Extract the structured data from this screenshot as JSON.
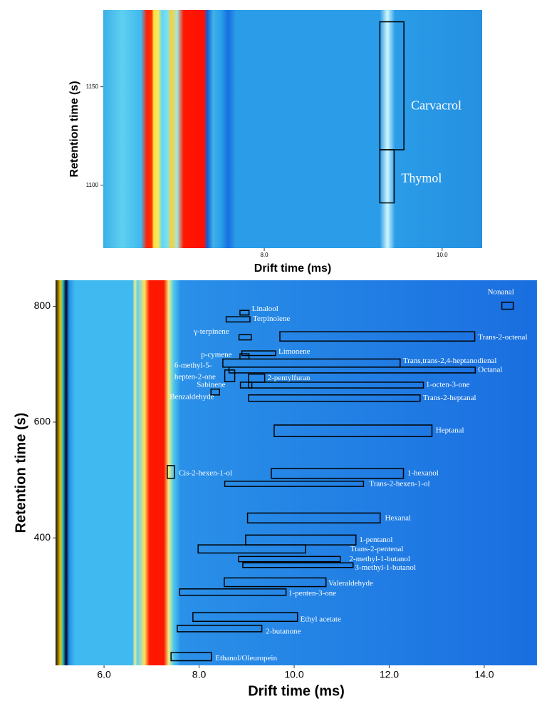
{
  "chart_data": [
    {
      "type": "heatmap",
      "xlabel": "Drift time (ms)",
      "ylabel": "Retention time (s)",
      "xlim": [
        6.19,
        10.45
      ],
      "ylim": [
        1068,
        1189
      ],
      "xticks": [
        {
          "value": 8,
          "label": "8.0"
        },
        {
          "value": 10,
          "label": "10.0"
        }
      ],
      "yticks": [
        1100,
        1150
      ],
      "annotations": [
        {
          "label": "Carvacrol",
          "x": [
            9.3,
            9.57
          ],
          "y": [
            1118,
            1183
          ],
          "at": [
            9.65,
            1140
          ]
        },
        {
          "label": "Thymol",
          "x": [
            9.3,
            9.46
          ],
          "y": [
            1091,
            1118
          ],
          "at": [
            9.54,
            1103
          ]
        }
      ]
    },
    {
      "type": "heatmap",
      "xlabel": "Drift time (ms)",
      "ylabel": "Retention time (s)",
      "xlim": [
        4.98,
        15.11
      ],
      "ylim": [
        180,
        845
      ],
      "xticks": [
        {
          "value": 6,
          "label": "6.0"
        },
        {
          "value": 8,
          "label": "8.0"
        },
        {
          "value": 10,
          "label": "10.0"
        },
        {
          "value": 12,
          "label": "12.0"
        },
        {
          "value": 14,
          "label": "14.0"
        }
      ],
      "yticks": [
        400,
        600,
        800
      ],
      "annotations": [
        {
          "label": "Nonanal",
          "x": [
            14.37,
            14.61
          ],
          "y": [
            795,
            807
          ],
          "at": [
            14.07,
            824
          ]
        },
        {
          "label": "Linalool",
          "x": [
            8.86,
            9.05
          ],
          "y": [
            785,
            793
          ],
          "at": [
            9.11,
            795
          ]
        },
        {
          "label": "Terpinolene",
          "x": [
            8.57,
            9.07
          ],
          "y": [
            773,
            782
          ],
          "at": [
            9.13,
            778
          ]
        },
        {
          "label": "γ-terpinene",
          "x": [
            8.84,
            9.1
          ],
          "y": [
            742,
            751
          ],
          "at": [
            7.89,
            756
          ]
        },
        {
          "label": "Trans-2-octenal",
          "x": [
            9.7,
            13.8
          ],
          "y": [
            740,
            756
          ],
          "at": [
            13.87,
            746
          ]
        },
        {
          "label": "Limonene",
          "x": [
            8.9,
            9.61
          ],
          "y": [
            715,
            723
          ],
          "at": [
            9.67,
            721
          ]
        },
        {
          "label": "p-cymene",
          "x": [
            8.86,
            9.05
          ],
          "y": [
            709,
            718
          ],
          "at": [
            8.04,
            716
          ]
        },
        {
          "label": "Trans,trans-2,4-heptanodienal",
          "x": [
            8.5,
            12.23
          ],
          "y": [
            695,
            709
          ],
          "at": [
            12.29,
            705
          ]
        },
        {
          "label": [
            "6-methyl-5-",
            "hepten-2-one"
          ],
          "x": [
            8.54,
            8.75
          ],
          "y": [
            670,
            690
          ],
          "at": [
            7.48,
            697
          ]
        },
        {
          "label": "Octanal",
          "x": [
            8.63,
            13.81
          ],
          "y": [
            685,
            695
          ],
          "at": [
            13.87,
            690
          ]
        },
        {
          "label": "2-pentylfuran",
          "x": [
            9.04,
            9.38
          ],
          "y": [
            669,
            683
          ],
          "at": [
            9.44,
            676
          ]
        },
        {
          "label": "Sabinene",
          "x": [
            8.87,
            9.11
          ],
          "y": [
            659,
            669
          ],
          "at": [
            7.95,
            664
          ]
        },
        {
          "label": "1-octen-3-one",
          "x": [
            9.04,
            12.72
          ],
          "y": [
            659,
            669
          ],
          "at": [
            12.77,
            664
          ]
        },
        {
          "label": "Benzaldehyde",
          "x": [
            8.25,
            8.43
          ],
          "y": [
            647,
            657
          ],
          "at": [
            7.38,
            643
          ]
        },
        {
          "label": "Trans-2-heptanal",
          "x": [
            9.04,
            12.65
          ],
          "y": [
            636,
            647
          ],
          "at": [
            12.71,
            641
          ]
        },
        {
          "label": "Heptanal",
          "x": [
            9.58,
            12.9
          ],
          "y": [
            575,
            595
          ],
          "at": [
            12.98,
            585
          ]
        },
        {
          "label": "Cis-2-hexen-1-ol",
          "x": [
            7.33,
            7.48
          ],
          "y": [
            503,
            525
          ],
          "at": [
            7.57,
            511
          ]
        },
        {
          "label": "1-hexanol",
          "x": [
            9.52,
            12.3
          ],
          "y": [
            503,
            520
          ],
          "at": [
            12.38,
            511
          ]
        },
        {
          "label": "Trans-2-hexen-1-ol",
          "x": [
            8.54,
            11.46
          ],
          "y": [
            489,
            498
          ],
          "at": [
            11.58,
            493
          ]
        },
        {
          "label": "Hexanal",
          "x": [
            9.02,
            11.81
          ],
          "y": [
            426,
            443
          ],
          "at": [
            11.91,
            434
          ]
        },
        {
          "label": "1-pentanol",
          "x": [
            8.98,
            11.3
          ],
          "y": [
            388,
            405
          ],
          "at": [
            11.37,
            396
          ]
        },
        {
          "label": "Trans-2-pentenal",
          "x": [
            7.98,
            10.24
          ],
          "y": [
            374,
            388
          ],
          "at": [
            11.18,
            380
          ]
        },
        {
          "label": "2-methyl-1-butanol",
          "x": [
            8.83,
            10.97
          ],
          "y": [
            359,
            368
          ],
          "at": [
            11.16,
            363
          ]
        },
        {
          "label": "3-methyl-1-butanol",
          "x": [
            8.92,
            11.24
          ],
          "y": [
            349,
            357
          ],
          "at": [
            11.28,
            348
          ]
        },
        {
          "label": "Valeraldehyde",
          "x": [
            8.53,
            10.67
          ],
          "y": [
            316,
            331
          ],
          "at": [
            10.72,
            321
          ]
        },
        {
          "label": "1-penten-3-one",
          "x": [
            7.59,
            9.83
          ],
          "y": [
            301,
            312
          ],
          "at": [
            9.88,
            304
          ]
        },
        {
          "label": "Ethyl acetate",
          "x": [
            7.87,
            10.07
          ],
          "y": [
            256,
            271
          ],
          "at": [
            10.13,
            259
          ]
        },
        {
          "label": "2-butanone",
          "x": [
            7.54,
            9.32
          ],
          "y": [
            238,
            249
          ],
          "at": [
            9.4,
            238
          ]
        },
        {
          "label": "Ethanol/Oleuropein",
          "x": [
            7.41,
            8.26
          ],
          "y": [
            188,
            202
          ],
          "at": [
            8.34,
            192
          ]
        }
      ]
    }
  ]
}
